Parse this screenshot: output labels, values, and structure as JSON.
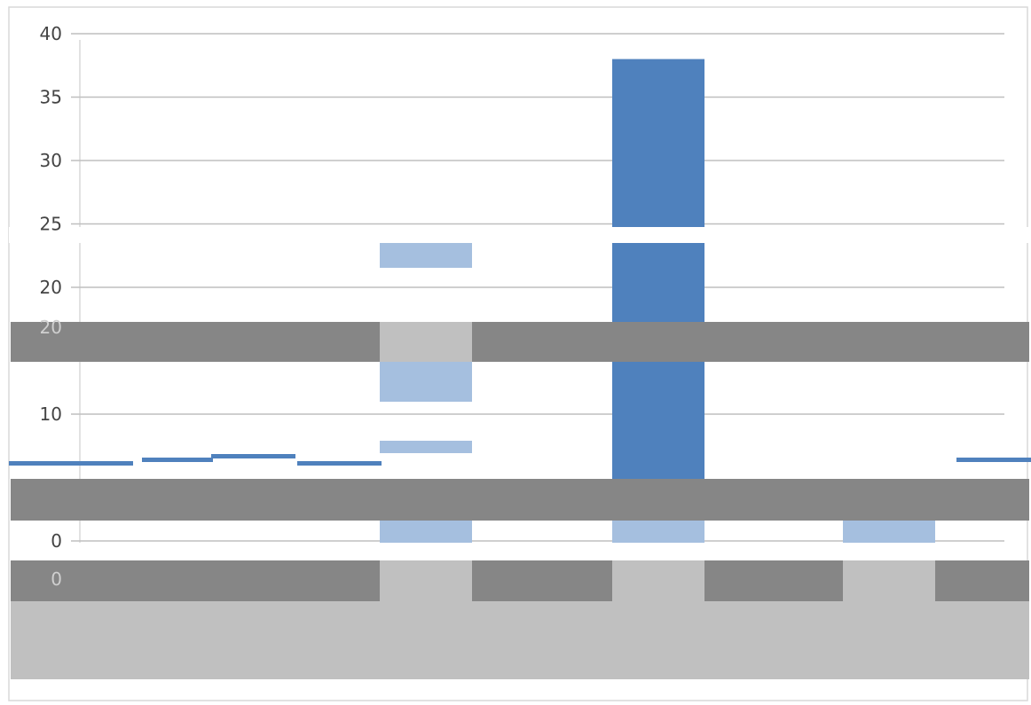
{
  "chart_data": {
    "type": "bar",
    "title": "",
    "xlabel": "",
    "ylabel": "",
    "ylim": [
      0,
      40
    ],
    "y_ticks": [
      "0",
      "10",
      "20",
      "25",
      "30",
      "35",
      "40"
    ],
    "ghost_tick_labels": [
      "20",
      "0"
    ],
    "categories": [
      "",
      "",
      ""
    ],
    "series": [
      {
        "values": [
          0,
          38,
          0
        ],
        "color": "#4f81bd"
      }
    ],
    "legend": "none",
    "grid": true,
    "colors": {
      "bar_primary": "#4f81bd",
      "bar_light": "#a5bfdf",
      "grid": "#bfbfbf",
      "artifact_dark": "#868686",
      "artifact_light": "#c0c0c0"
    }
  }
}
